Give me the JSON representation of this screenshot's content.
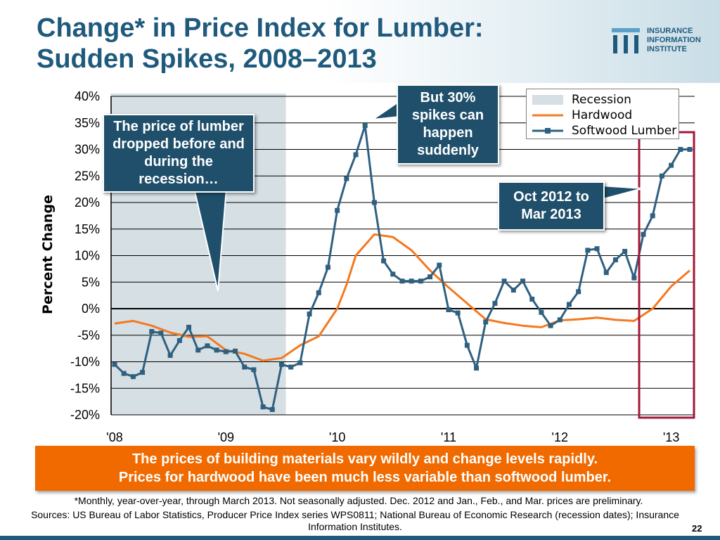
{
  "slide": {
    "title_line1": "Change* in Price Index for Lumber:",
    "title_line2": "Sudden Spikes, 2008–2013",
    "page_number": "22"
  },
  "logo": {
    "line1": "INSURANCE",
    "line2": "INFORMATION",
    "line3": "INSTITUTE",
    "icon": "iii-logo-icon"
  },
  "callouts": {
    "recession_drop": "The price of lumber dropped before and during the recession…",
    "spikes": "But 30% spikes can happen suddenly",
    "recent_period": "Oct 2012 to Mar 2013"
  },
  "banner": {
    "line1": "The prices of building materials vary wildly and change levels rapidly.",
    "line2": "Prices for hardwood have been much less variable than softwood lumber."
  },
  "footnote": "*Monthly, year-over-year, through March 2013. Not seasonally adjusted. Dec. 2012 and Jan., Feb., and Mar. prices are preliminary.",
  "sources": "Sources: US Bureau of Labor Statistics, Producer Price Index series WPS0811; National Bureau of Economic Research (recession dates); Insurance Information Institutes.",
  "colors": {
    "title": "#1f5a7d",
    "recession": "#d5dfe4",
    "hardwood": "#f47920",
    "softwood": "#2f6080",
    "highlight_box": "#a3183a",
    "banner": "#f06a00",
    "callout": "#1f4f6b"
  },
  "chart_data": {
    "type": "line",
    "title": "Change* in Price Index for Lumber: Sudden Spikes, 2008–2013",
    "ylabel": "Percent Change",
    "xlabel": "",
    "ylim": [
      -20,
      40
    ],
    "y_ticks": [
      "40%",
      "35%",
      "30%",
      "25%",
      "20%",
      "15%",
      "10%",
      "5%",
      "0%",
      "-5%",
      "-10%",
      "-15%",
      "-20%"
    ],
    "y_tick_values": [
      40,
      35,
      30,
      25,
      20,
      15,
      10,
      5,
      0,
      -5,
      -10,
      -15,
      -20
    ],
    "x_tick_labels": [
      "'08",
      "'09",
      "'10",
      "'11",
      "'12",
      "'13"
    ],
    "x_range_months": [
      0,
      62
    ],
    "legend": {
      "position": "top-right",
      "recession": "Recession",
      "hardwood": "Hardwood",
      "softwood": "Softwood Lumber"
    },
    "recession_period": {
      "start_month": 0,
      "end_month": 18
    },
    "highlight_period": {
      "start_month": 57,
      "end_month": 62,
      "label": "Oct 2012 to Mar 2013"
    },
    "series": [
      {
        "name": "Hardwood",
        "x": [
          0,
          2,
          4,
          6,
          8,
          10,
          12,
          14,
          16,
          18,
          20,
          22,
          24,
          25,
          26,
          28,
          30,
          32,
          34,
          36,
          38,
          40,
          42,
          44,
          46,
          48,
          50,
          52,
          54,
          56,
          58,
          60,
          62
        ],
        "values": [
          -2.8,
          -2.3,
          -3.2,
          -4.5,
          -5.3,
          -5.2,
          -7.8,
          -8.5,
          -9.8,
          -9.3,
          -6.9,
          -5.2,
          0.0,
          4.5,
          10.0,
          14.0,
          13.5,
          11.0,
          7.2,
          4.0,
          1.0,
          -2.0,
          -2.7,
          -3.2,
          -3.5,
          -2.2,
          -2.0,
          -1.7,
          -2.1,
          -2.3,
          0.0,
          4.2,
          7.2
        ]
      },
      {
        "name": "Softwood Lumber",
        "x": [
          0,
          1,
          2,
          3,
          4,
          5,
          6,
          7,
          8,
          9,
          10,
          11,
          12,
          13,
          14,
          15,
          16,
          17,
          18,
          19,
          20,
          21,
          22,
          23,
          24,
          25,
          26,
          27,
          28,
          29,
          30,
          31,
          32,
          33,
          34,
          35,
          36,
          37,
          38,
          39,
          40,
          41,
          42,
          43,
          44,
          45,
          46,
          47,
          48,
          49,
          50,
          51,
          52,
          53,
          54,
          55,
          56,
          57,
          58,
          59,
          60,
          61,
          62
        ],
        "values": [
          -10.5,
          -12.2,
          -12.8,
          -12.0,
          -4.3,
          -4.6,
          -8.8,
          -6.0,
          -3.5,
          -7.8,
          -7.0,
          -7.8,
          -8.1,
          -8.0,
          -11.0,
          -11.5,
          -18.5,
          -19.0,
          -10.5,
          -11.0,
          -10.2,
          -1.0,
          3.0,
          7.8,
          18.5,
          24.5,
          29.0,
          34.5,
          20.0,
          9.0,
          6.5,
          5.2,
          5.2,
          5.2,
          6.0,
          8.2,
          -0.2,
          -0.8,
          -6.9,
          -11.2,
          -2.5,
          1.0,
          5.2,
          3.5,
          5.2,
          1.8,
          -0.7,
          -3.2,
          -2.1,
          0.8,
          3.2,
          11.0,
          11.3,
          6.8,
          9.2,
          10.8,
          5.8,
          14.0,
          17.5,
          25.0,
          27.0,
          30.0,
          30.0
        ]
      }
    ]
  }
}
